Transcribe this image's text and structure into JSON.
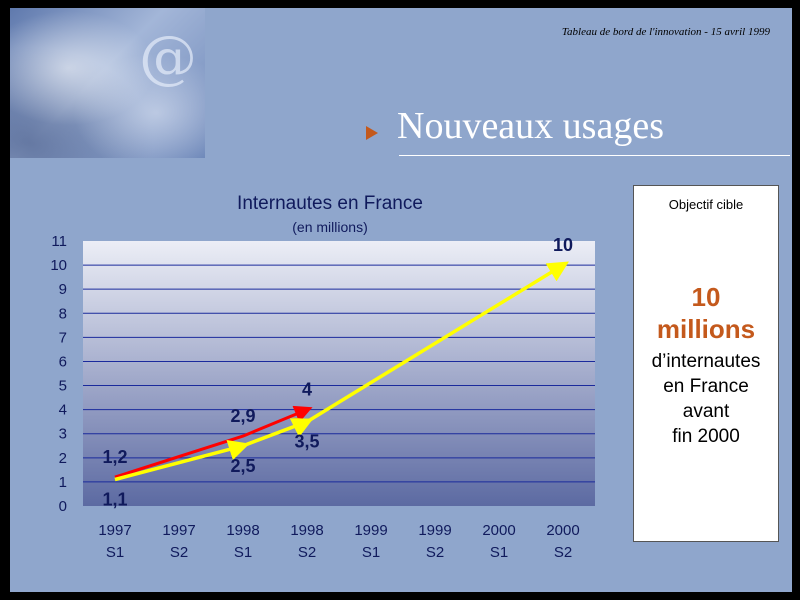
{
  "header": {
    "caption": "Tableau de bord de l'innovation - 15 avril 1999",
    "title": "Nouveaux usages"
  },
  "banner": {
    "symbol": "@"
  },
  "target_box": {
    "heading": "Objectif cible",
    "value": "10",
    "unit": "millions",
    "lines": [
      "d’internautes",
      "en France",
      "avant",
      "fin 2000"
    ]
  },
  "colors": {
    "accent": "#c4591c",
    "title_text": "#101a5c",
    "trend_yellow": "#ffff00",
    "trend_red": "#ff0000",
    "trend_orange": "#f0a020",
    "plot_top": "#eceef6",
    "plot_bottom": "#5c6aa2",
    "gridline": "#1a2a9c"
  },
  "chart_data": {
    "type": "line",
    "title": "Internautes en France",
    "subtitle": "(en millions)",
    "categories": [
      "1997 S1",
      "1997 S2",
      "1998 S1",
      "1998 S2",
      "1999 S1",
      "1999 S2",
      "2000 S1",
      "2000 S2"
    ],
    "category_labels": [
      [
        "1997",
        "S1"
      ],
      [
        "1997",
        "S2"
      ],
      [
        "1998",
        "S1"
      ],
      [
        "1998",
        "S2"
      ],
      [
        "1999",
        "S1"
      ],
      [
        "1999",
        "S2"
      ],
      [
        "2000",
        "S1"
      ],
      [
        "2000",
        "S2"
      ]
    ],
    "ylim": [
      0,
      11
    ],
    "yticks": [
      0,
      1,
      2,
      3,
      4,
      5,
      6,
      7,
      8,
      9,
      10,
      11
    ],
    "grid": true,
    "legend": "none",
    "series": [
      {
        "color": "#ff0000",
        "points": [
          [
            0,
            1.2
          ],
          [
            2,
            2.9
          ],
          [
            3,
            4
          ]
        ]
      },
      {
        "color": "#f0a020",
        "points": [
          [
            0,
            1.1
          ],
          [
            2,
            2.5
          ],
          [
            3,
            3.5
          ]
        ]
      },
      {
        "color": "#ffff00",
        "points": [
          [
            0,
            1.1
          ],
          [
            2,
            2.5
          ],
          [
            3,
            3.5
          ],
          [
            7,
            10
          ]
        ]
      }
    ],
    "annotations": [
      {
        "text": "1,2",
        "x": 0,
        "y": 1.2,
        "position": "above"
      },
      {
        "text": "1,1",
        "x": 0,
        "y": 1.1,
        "position": "below"
      },
      {
        "text": "2,9",
        "x": 2,
        "y": 2.9,
        "position": "above"
      },
      {
        "text": "2,5",
        "x": 2,
        "y": 2.5,
        "position": "below"
      },
      {
        "text": "4",
        "x": 3,
        "y": 4,
        "position": "above"
      },
      {
        "text": "3,5",
        "x": 3,
        "y": 3.5,
        "position": "below"
      },
      {
        "text": "10",
        "x": 7,
        "y": 10,
        "position": "above"
      }
    ]
  }
}
